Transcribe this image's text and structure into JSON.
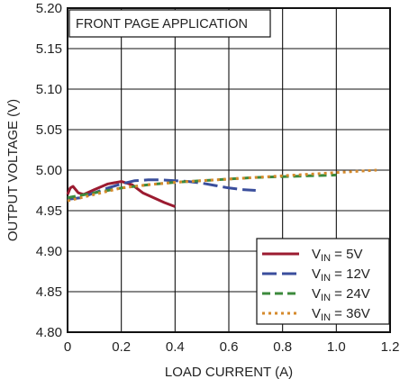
{
  "chart_data": {
    "type": "line",
    "title": "",
    "annotation": "FRONT PAGE APPLICATION",
    "xlabel": "LOAD CURRENT (A)",
    "ylabel": "OUTPUT VOLTAGE (V)",
    "xlim": [
      0,
      1.2
    ],
    "ylim": [
      4.8,
      5.2
    ],
    "x_ticks": [
      "0",
      "0.2",
      "0.4",
      "0.6",
      "0.8",
      "1.0",
      "1.2"
    ],
    "y_ticks": [
      "4.80",
      "4.85",
      "4.90",
      "4.95",
      "5.00",
      "5.05",
      "5.10",
      "5.15",
      "5.20"
    ],
    "grid": true,
    "legend_position": "bottom-right",
    "series": [
      {
        "name": "V_IN = 5V",
        "legend": {
          "main": "V",
          "sub": "IN",
          "rest": " = 5V"
        },
        "color": "#9b1b30",
        "dash": "solid",
        "x": [
          0.0,
          0.01,
          0.02,
          0.04,
          0.06,
          0.1,
          0.15,
          0.2,
          0.24,
          0.28,
          0.32,
          0.36,
          0.4
        ],
        "y": [
          4.97,
          4.978,
          4.98,
          4.972,
          4.97,
          4.976,
          4.983,
          4.986,
          4.982,
          4.972,
          4.966,
          4.96,
          4.955
        ]
      },
      {
        "name": "V_IN = 12V",
        "legend": {
          "main": "V",
          "sub": "IN",
          "rest": " = 12V"
        },
        "color": "#3a4e9c",
        "dash": "long-dash",
        "x": [
          0.0,
          0.05,
          0.1,
          0.15,
          0.2,
          0.25,
          0.3,
          0.35,
          0.4,
          0.45,
          0.5,
          0.55,
          0.6,
          0.65,
          0.7
        ],
        "y": [
          4.964,
          4.966,
          4.972,
          4.978,
          4.983,
          4.987,
          4.988,
          4.988,
          4.987,
          4.986,
          4.984,
          4.981,
          4.978,
          4.976,
          4.975
        ]
      },
      {
        "name": "V_IN = 24V",
        "legend": {
          "main": "V",
          "sub": "IN",
          "rest": " = 24V"
        },
        "color": "#3c8a3c",
        "dash": "dash",
        "x": [
          0.0,
          0.1,
          0.2,
          0.3,
          0.4,
          0.5,
          0.6,
          0.7,
          0.8,
          0.9,
          1.0
        ],
        "y": [
          4.966,
          4.972,
          4.978,
          4.982,
          4.985,
          4.987,
          4.989,
          4.991,
          4.992,
          4.993,
          4.994
        ]
      },
      {
        "name": "V_IN = 36V",
        "legend": {
          "main": "V",
          "sub": "IN",
          "rest": " = 36V"
        },
        "color": "#d58a2c",
        "dash": "dot",
        "x": [
          0.0,
          0.1,
          0.2,
          0.3,
          0.4,
          0.5,
          0.6,
          0.7,
          0.8,
          0.9,
          1.0,
          1.1,
          1.15
        ],
        "y": [
          4.962,
          4.97,
          4.978,
          4.982,
          4.985,
          4.987,
          4.989,
          4.991,
          4.993,
          4.995,
          4.997,
          4.999,
          5.0
        ]
      }
    ]
  }
}
